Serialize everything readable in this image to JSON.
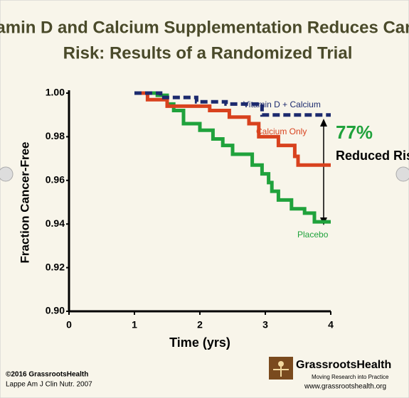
{
  "chart_data": {
    "type": "step-line",
    "title": [
      "Vitamin D and Calcium Supplementation Reduces Cancer",
      "Risk: Results of a Randomized Trial"
    ],
    "x_label": "Time (yrs)",
    "y_label": "Fraction Cancer-Free",
    "xlim": [
      0,
      4
    ],
    "xticks": [
      0,
      1,
      2,
      3,
      4
    ],
    "ylim": [
      0.9,
      1.0
    ],
    "yticks": [
      {
        "value": 0.9,
        "label": "0.90"
      },
      0.92,
      0.94,
      0.96,
      0.98,
      {
        "value": 1.0,
        "label": "1.00"
      }
    ],
    "series": [
      {
        "name": "Vitamin D + Calcium",
        "color": "#1c2a6e",
        "dashed": true,
        "x": [
          1,
          1.4,
          1.4,
          1.95,
          1.95,
          2.4,
          2.4,
          2.95,
          2.95,
          4
        ],
        "values": [
          1.0,
          1.0,
          0.998,
          0.998,
          0.996,
          0.996,
          0.995,
          0.995,
          0.99,
          0.99
        ]
      },
      {
        "name": "Calcium Only",
        "color": "#d8421e",
        "dashed": false,
        "x": [
          1,
          1.2,
          1.2,
          1.5,
          1.5,
          2.15,
          2.15,
          2.45,
          2.45,
          2.75,
          2.75,
          2.9,
          2.9,
          3.2,
          3.2,
          3.45,
          3.45,
          3.5,
          3.5,
          4
        ],
        "values": [
          1.0,
          1.0,
          0.997,
          0.997,
          0.994,
          0.994,
          0.992,
          0.992,
          0.989,
          0.989,
          0.986,
          0.986,
          0.98,
          0.98,
          0.976,
          0.976,
          0.971,
          0.971,
          0.967,
          0.967
        ]
      },
      {
        "name": "Placebo",
        "color": "#20a23c",
        "dashed": false,
        "x": [
          1,
          1.35,
          1.35,
          1.5,
          1.5,
          1.6,
          1.6,
          1.75,
          1.75,
          2.0,
          2.0,
          2.2,
          2.2,
          2.35,
          2.35,
          2.5,
          2.5,
          2.8,
          2.8,
          2.95,
          2.95,
          3.05,
          3.05,
          3.1,
          3.1,
          3.2,
          3.2,
          3.4,
          3.4,
          3.6,
          3.6,
          3.75,
          3.75,
          4
        ],
        "values": [
          1.0,
          1.0,
          0.999,
          0.999,
          0.995,
          0.995,
          0.992,
          0.992,
          0.986,
          0.986,
          0.983,
          0.983,
          0.979,
          0.979,
          0.976,
          0.976,
          0.972,
          0.972,
          0.967,
          0.967,
          0.963,
          0.963,
          0.959,
          0.959,
          0.955,
          0.955,
          0.951,
          0.951,
          0.947,
          0.947,
          0.945,
          0.945,
          0.941,
          0.941
        ]
      }
    ],
    "annotations": {
      "percent": "77%",
      "text": "Reduced Risk"
    }
  },
  "footer": {
    "copyright": "©2016 GrassrootsHealth",
    "citation": "Lappe  Am J Clin Nutr. 2007",
    "brand": "GrassrootsHealth",
    "tagline": "Moving Research into Practice",
    "url": "www.grassrootshealth.org"
  }
}
